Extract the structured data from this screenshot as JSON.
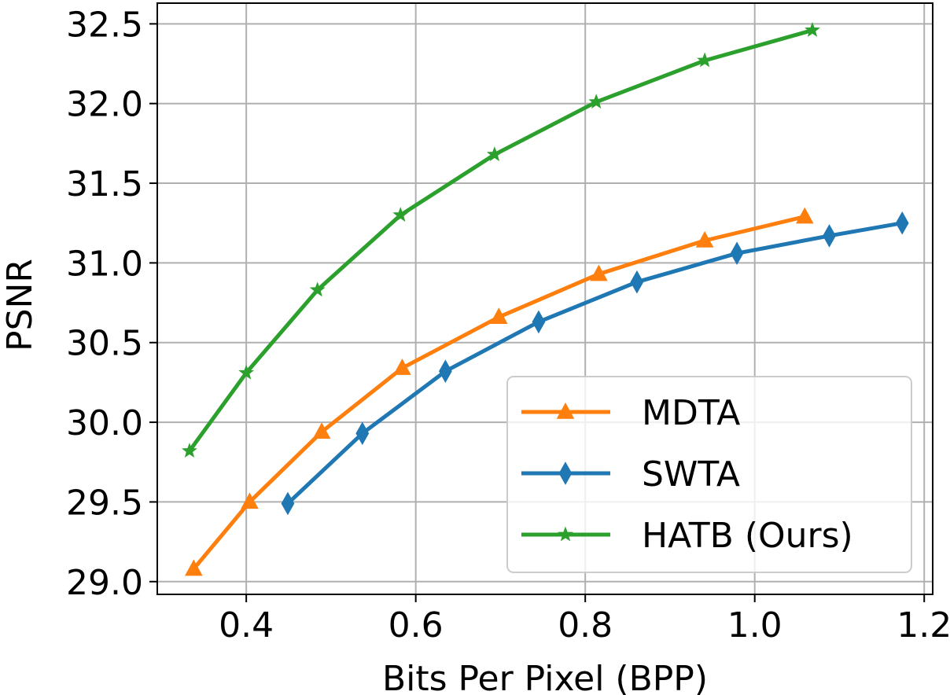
{
  "chart_data": {
    "type": "line",
    "title": "",
    "xlabel": "Bits Per Pixel (BPP)",
    "ylabel": "PSNR",
    "xlim": [
      0.295,
      1.21
    ],
    "ylim": [
      28.92,
      32.63
    ],
    "xticks": [
      0.4,
      0.6,
      0.8,
      1.0,
      1.2
    ],
    "xtick_labels": [
      "0.4",
      "0.6",
      "0.8",
      "1.0",
      "1.2"
    ],
    "yticks": [
      29.0,
      29.5,
      30.0,
      30.5,
      31.0,
      31.5,
      32.0,
      32.5
    ],
    "ytick_labels": [
      "29.0",
      "29.5",
      "30.0",
      "30.5",
      "31.0",
      "31.5",
      "32.0",
      "32.5"
    ],
    "grid": true,
    "legend_position": "bottom-right",
    "series": [
      {
        "name": "MDTA",
        "color": "#ff7f0e",
        "marker": "triangle",
        "x": [
          0.338,
          0.404,
          0.489,
          0.584,
          0.698,
          0.816,
          0.941,
          1.059
        ],
        "y": [
          29.08,
          29.5,
          29.94,
          30.34,
          30.66,
          30.93,
          31.14,
          31.29
        ]
      },
      {
        "name": "SWTA",
        "color": "#1f77b4",
        "marker": "diamond",
        "x": [
          0.449,
          0.537,
          0.635,
          0.745,
          0.861,
          0.979,
          1.088,
          1.174
        ],
        "y": [
          29.49,
          29.93,
          30.32,
          30.63,
          30.88,
          31.06,
          31.17,
          31.25
        ]
      },
      {
        "name": "HATB (Ours)",
        "color": "#2ca02c",
        "marker": "star",
        "x": [
          0.333,
          0.4,
          0.484,
          0.582,
          0.693,
          0.813,
          0.941,
          1.068
        ],
        "y": [
          29.82,
          30.31,
          30.83,
          31.3,
          31.68,
          32.01,
          32.27,
          32.46
        ]
      }
    ]
  }
}
